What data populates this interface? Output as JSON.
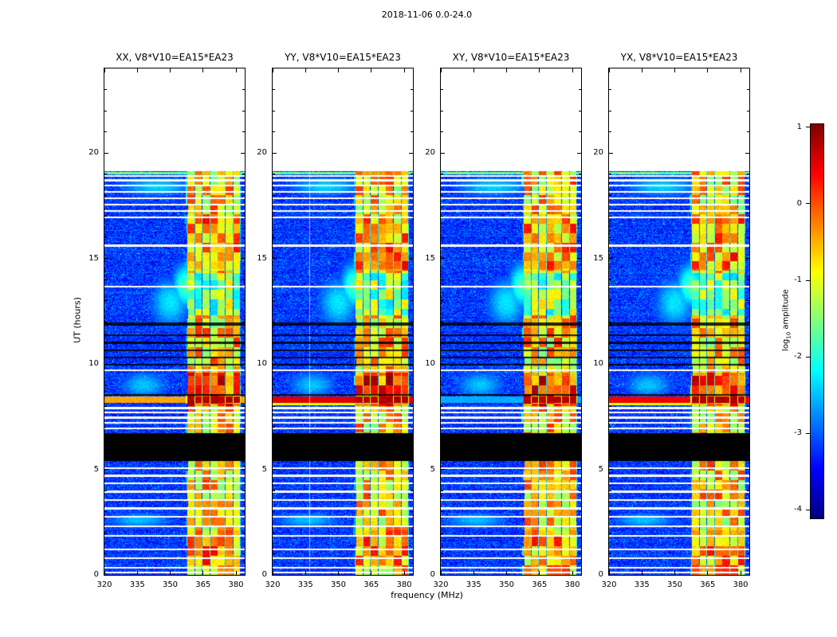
{
  "figure": {
    "colorbar": {
      "label_prefix": "log",
      "label_sub": "10",
      "label_suffix": " amplitude"
    }
  },
  "chart_data": {
    "type": "heatmap",
    "title": "2018-11-06 0.0-24.0",
    "xlabel": "frequency (MHz)",
    "ylabel": "UT (hours)",
    "colormap": "jet",
    "x_ticks": [
      320,
      335,
      350,
      365,
      380
    ],
    "x_range": [
      320,
      384
    ],
    "y_ticks": [
      0,
      5,
      10,
      15,
      20
    ],
    "y_range": [
      0,
      24
    ],
    "value_range": [
      -4.1,
      1.05
    ],
    "colorbar_ticks": [
      1,
      0,
      -1,
      -2,
      -3,
      -4
    ],
    "colorbar_label": "log10 amplitude",
    "panels": [
      {
        "id": "XX",
        "title": "XX, V8*V10=EA15*EA23",
        "seed": 11,
        "burst_out_level": -0.55,
        "vertical_line_mhz": null
      },
      {
        "id": "YY",
        "title": "YY, V8*V10=EA15*EA23",
        "seed": 22,
        "burst_out_level": 0.45,
        "vertical_line_mhz": 337
      },
      {
        "id": "XY",
        "title": "XY, V8*V10=EA15*EA23",
        "seed": 33,
        "burst_out_level": -2.7,
        "vertical_line_mhz": null
      },
      {
        "id": "YX",
        "title": "YX, V8*V10=EA15*EA23",
        "seed": 44,
        "burst_out_level": 0.35,
        "vertical_line_mhz": null
      }
    ],
    "features": {
      "data_top_hour": 19.15,
      "top_edge_hours": [
        19.0,
        19.1
      ],
      "flagged_black_band_hours": [
        5.4,
        6.7
      ],
      "rfi_band_mhz": [
        357.5,
        382
      ],
      "burst_hours": [
        8.15,
        8.45
      ],
      "burst_pre_hours": [
        8.02,
        8.15
      ],
      "block_hours": 0.45,
      "channel_spacing_mhz": 3.5,
      "white_line_hours": [
        0.12,
        0.35,
        0.8,
        1.2,
        1.85,
        2.3,
        2.75,
        3.15,
        3.55,
        3.95,
        4.35,
        4.7,
        5.05,
        6.95,
        7.2,
        7.45,
        7.7,
        7.9,
        9.7,
        13.65,
        15.6,
        16.95,
        17.25,
        17.55,
        17.85,
        18.15,
        18.45,
        18.7,
        18.9
      ],
      "black_line_hours": [
        8.52,
        9.95,
        10.3,
        10.65,
        11.0,
        11.35,
        11.87,
        11.93
      ],
      "cyan_patches": [
        {
          "hour": 13.7,
          "freq": 357,
          "rh": 0.9,
          "rf": 5,
          "level": -1.9
        },
        {
          "hour": 12.9,
          "freq": 350,
          "rh": 1.2,
          "rf": 9,
          "level": -2.4
        },
        {
          "hour": 18.4,
          "freq": 344,
          "rh": 0.5,
          "rf": 18,
          "level": -2.5
        },
        {
          "hour": 9.0,
          "freq": 338,
          "rh": 0.7,
          "rf": 12,
          "level": -2.6
        },
        {
          "hour": 2.6,
          "freq": 336,
          "rh": 0.4,
          "rf": 16,
          "level": -2.6
        }
      ]
    }
  }
}
